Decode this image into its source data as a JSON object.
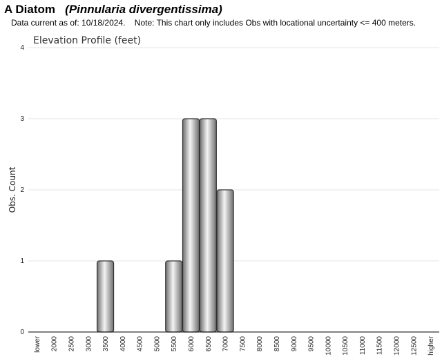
{
  "header": {
    "species_common": "A Diatom",
    "species_scientific": "(Pinnularia divergentissima)",
    "data_current": "Data current as of: 10/18/2024.",
    "note": "Note: This chart only includes Obs with locational uncertainty <= 400 meters."
  },
  "chart_data": {
    "type": "bar",
    "title": "Elevation Profile (feet)",
    "xlabel": "",
    "ylabel": "Obs. Count",
    "ylim": [
      0,
      4
    ],
    "yticks": [
      0,
      1,
      2,
      3,
      4
    ],
    "grid": true,
    "categories": [
      "lower",
      "2000",
      "2500",
      "3000",
      "3500",
      "4000",
      "4500",
      "5000",
      "5500",
      "6000",
      "6500",
      "7000",
      "7500",
      "8000",
      "8500",
      "9000",
      "9500",
      "10000",
      "10500",
      "11000",
      "11500",
      "12000",
      "12500",
      "higher"
    ],
    "values": [
      0,
      0,
      0,
      0,
      1,
      0,
      0,
      0,
      1,
      3,
      3,
      2,
      0,
      0,
      0,
      0,
      0,
      0,
      0,
      0,
      0,
      0,
      0,
      0
    ]
  },
  "colors": {
    "bar_stroke": "#333333",
    "bar_light": "#f4f4f4",
    "bar_dark": "#6e6e6e",
    "grid": "#e6e6e6",
    "axis": "#000000"
  }
}
